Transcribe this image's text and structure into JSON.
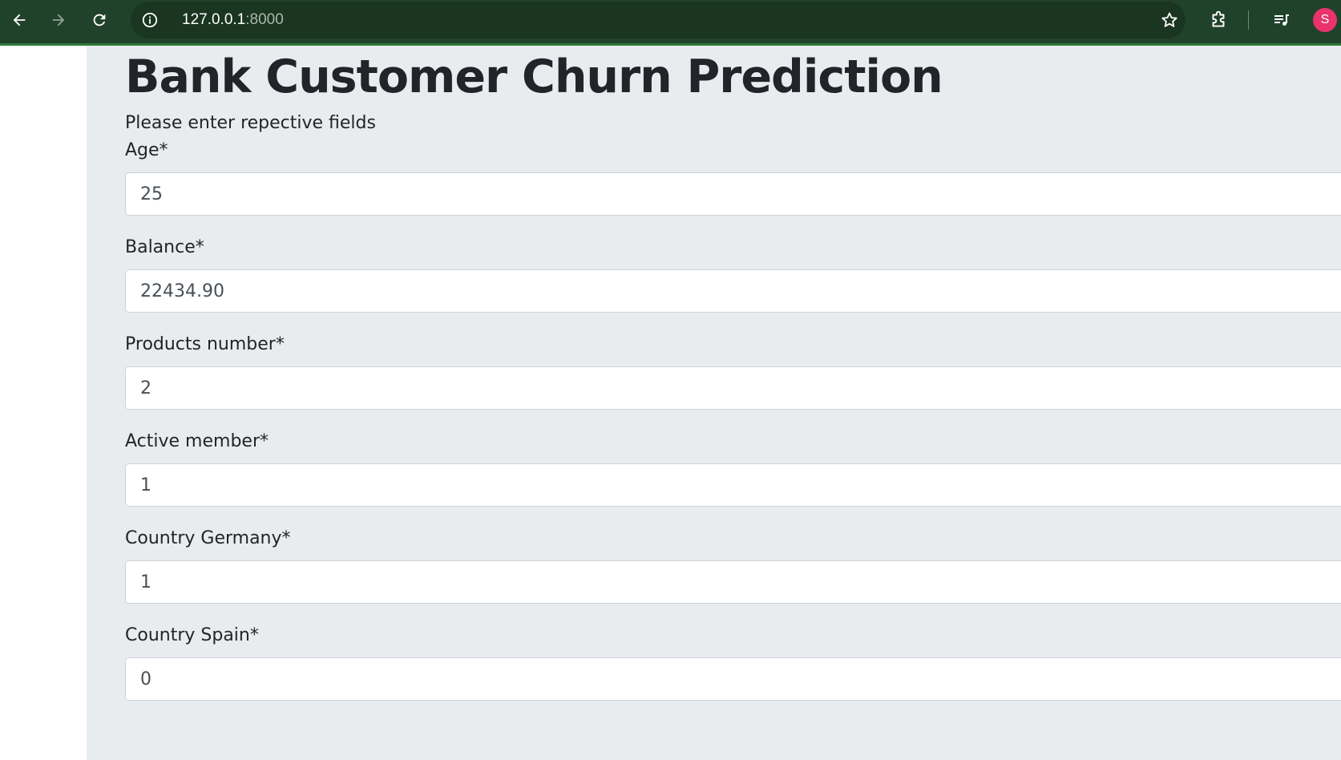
{
  "browser": {
    "url_host": "127.0.0.1",
    "url_port": ":8000",
    "profile_initial": "S",
    "icons": {
      "back": "arrow-left-icon",
      "forward": "arrow-right-icon",
      "reload": "reload-icon",
      "info": "info-icon",
      "bookmark": "star-icon",
      "extensions": "puzzle-icon",
      "media": "queue-music-icon"
    },
    "colors": {
      "toolbar": "#21422a",
      "accent": "#2d7a3a",
      "avatar": "#e8336c"
    }
  },
  "page": {
    "title": "Bank Customer Churn Prediction",
    "subtitle": "Please enter repective fields",
    "background": "#e9ecef"
  },
  "form": {
    "fields": [
      {
        "label": "Age*",
        "value": "25"
      },
      {
        "label": "Balance*",
        "value": "22434.90"
      },
      {
        "label": "Products number*",
        "value": "2"
      },
      {
        "label": "Active member*",
        "value": "1"
      },
      {
        "label": "Country Germany*",
        "value": "1"
      },
      {
        "label": "Country Spain*",
        "value": "0"
      }
    ]
  }
}
